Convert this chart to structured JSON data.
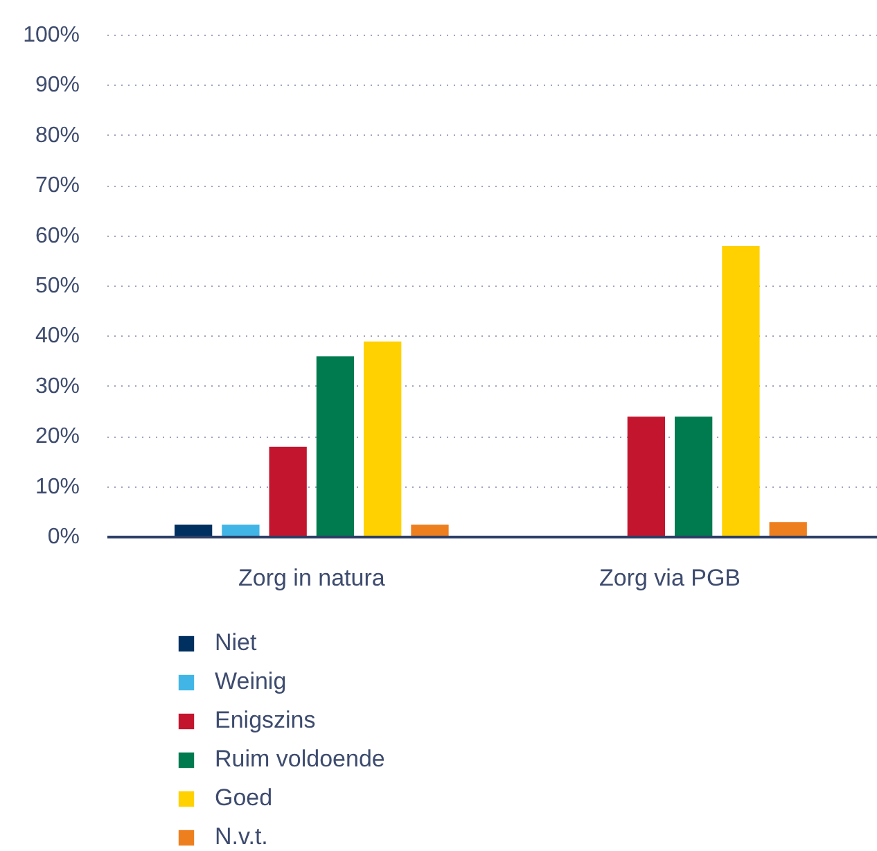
{
  "chart_data": {
    "type": "bar",
    "categories": [
      "Zorg in natura",
      "Zorg via PGB"
    ],
    "series": [
      {
        "name": "Niet",
        "color": "#00305f",
        "values": [
          2.5,
          0
        ]
      },
      {
        "name": "Weinig",
        "color": "#41b6e6",
        "values": [
          2.5,
          0
        ]
      },
      {
        "name": "Enigszins",
        "color": "#c4152e",
        "values": [
          18,
          24
        ]
      },
      {
        "name": "Ruim voldoende",
        "color": "#007a4f",
        "values": [
          36,
          24
        ]
      },
      {
        "name": "Goed",
        "color": "#ffd100",
        "values": [
          39,
          58
        ]
      },
      {
        "name": "N.v.t.",
        "color": "#ee7f1f",
        "values": [
          2.5,
          3
        ]
      }
    ],
    "ylim": [
      0,
      100
    ],
    "yticks": [
      {
        "value": 0,
        "label": "0%"
      },
      {
        "value": 10,
        "label": "10%"
      },
      {
        "value": 20,
        "label": "20%"
      },
      {
        "value": 30,
        "label": "30%"
      },
      {
        "value": 40,
        "label": "40%"
      },
      {
        "value": 50,
        "label": "50%"
      },
      {
        "value": 60,
        "label": "60%"
      },
      {
        "value": 70,
        "label": "70%"
      },
      {
        "value": 80,
        "label": "80%"
      },
      {
        "value": 90,
        "label": "90%"
      },
      {
        "value": 100,
        "label": "100%"
      }
    ],
    "grid": "y",
    "legend": "bottom"
  }
}
